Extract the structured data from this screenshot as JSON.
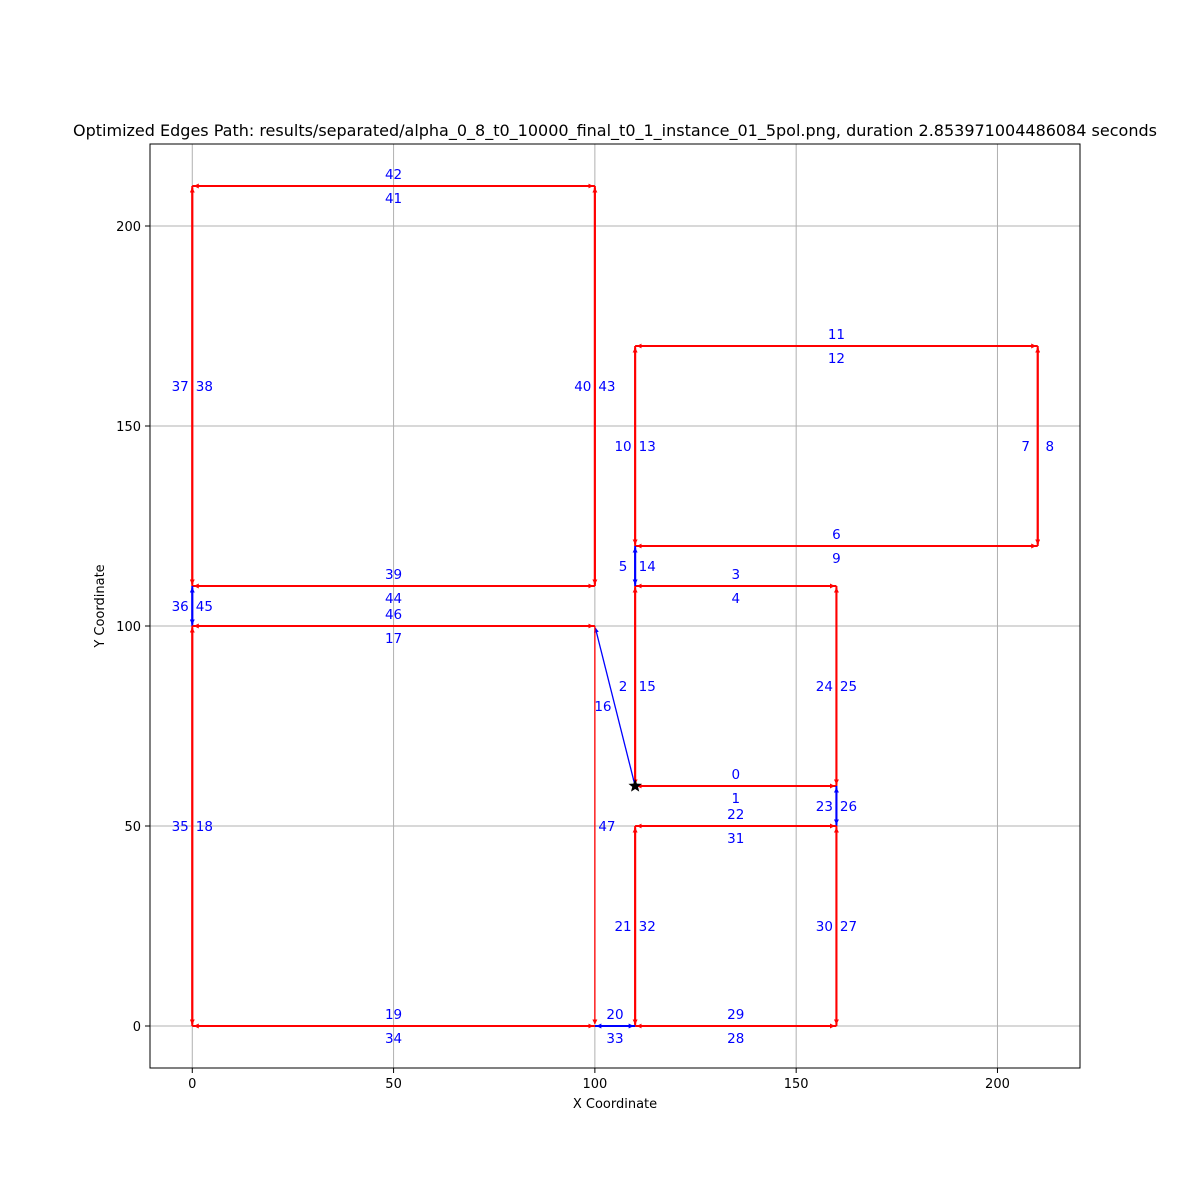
{
  "chart_data": {
    "type": "scatter",
    "title": "Optimized Edges Path: results/separated/alpha_0_8_t0_10000_final_t0_1_instance_01_5pol.png, duration 2.853971004486084 seconds",
    "xlabel": "X Coordinate",
    "ylabel": "Y Coordinate",
    "xlim": [
      -10.5,
      220.5
    ],
    "ylim": [
      -10.5,
      220.5
    ],
    "grid": true,
    "xticks": [
      0,
      50,
      100,
      150,
      200
    ],
    "yticks": [
      0,
      50,
      100,
      150,
      200
    ],
    "start_point": [
      110,
      60
    ],
    "colors": {
      "cover": "#ff0000",
      "move": "#0000ff",
      "label": "#0000ff",
      "start": "#000000"
    },
    "edges": [
      {
        "id": 0,
        "from": [
          110,
          60
        ],
        "to": [
          160,
          60
        ],
        "kind": "cover",
        "label_pos": [
          135,
          63
        ]
      },
      {
        "id": 1,
        "from": [
          160,
          60
        ],
        "to": [
          110,
          60
        ],
        "kind": "cover",
        "label_pos": [
          135,
          57
        ]
      },
      {
        "id": 2,
        "from": [
          110,
          60
        ],
        "to": [
          110,
          110
        ],
        "kind": "cover",
        "label_pos": [
          107,
          85
        ]
      },
      {
        "id": 3,
        "from": [
          110,
          110
        ],
        "to": [
          160,
          110
        ],
        "kind": "cover",
        "label_pos": [
          135,
          113
        ]
      },
      {
        "id": 4,
        "from": [
          160,
          110
        ],
        "to": [
          110,
          110
        ],
        "kind": "cover",
        "label_pos": [
          135,
          107
        ]
      },
      {
        "id": 5,
        "from": [
          110,
          110
        ],
        "to": [
          110,
          120
        ],
        "kind": "move",
        "label_pos": [
          107,
          115
        ]
      },
      {
        "id": 6,
        "from": [
          110,
          120
        ],
        "to": [
          210,
          120
        ],
        "kind": "cover",
        "label_pos": [
          160,
          123
        ]
      },
      {
        "id": 7,
        "from": [
          210,
          120
        ],
        "to": [
          210,
          170
        ],
        "kind": "cover",
        "label_pos": [
          207,
          145
        ]
      },
      {
        "id": 8,
        "from": [
          210,
          170
        ],
        "to": [
          210,
          120
        ],
        "kind": "cover",
        "label_pos": [
          213,
          145
        ]
      },
      {
        "id": 9,
        "from": [
          210,
          120
        ],
        "to": [
          110,
          120
        ],
        "kind": "cover",
        "label_pos": [
          160,
          117
        ]
      },
      {
        "id": 10,
        "from": [
          110,
          120
        ],
        "to": [
          110,
          170
        ],
        "kind": "cover",
        "label_pos": [
          107,
          145
        ]
      },
      {
        "id": 11,
        "from": [
          110,
          170
        ],
        "to": [
          210,
          170
        ],
        "kind": "cover",
        "label_pos": [
          160,
          173
        ]
      },
      {
        "id": 12,
        "from": [
          210,
          170
        ],
        "to": [
          110,
          170
        ],
        "kind": "cover",
        "label_pos": [
          160,
          167
        ]
      },
      {
        "id": 13,
        "from": [
          110,
          170
        ],
        "to": [
          110,
          120
        ],
        "kind": "cover",
        "label_pos": [
          113,
          145
        ]
      },
      {
        "id": 14,
        "from": [
          110,
          120
        ],
        "to": [
          110,
          110
        ],
        "kind": "move",
        "label_pos": [
          113,
          115
        ]
      },
      {
        "id": 15,
        "from": [
          110,
          110
        ],
        "to": [
          110,
          60
        ],
        "kind": "cover",
        "label_pos": [
          113,
          85
        ]
      },
      {
        "id": 16,
        "from": [
          110,
          60
        ],
        "to": [
          100,
          100
        ],
        "kind": "move",
        "label_pos": [
          102,
          80
        ]
      },
      {
        "id": 17,
        "from": [
          100,
          100
        ],
        "to": [
          0,
          100
        ],
        "kind": "cover",
        "label_pos": [
          50,
          97
        ]
      },
      {
        "id": 18,
        "from": [
          0,
          100
        ],
        "to": [
          0,
          0
        ],
        "kind": "cover",
        "label_pos": [
          3,
          50
        ]
      },
      {
        "id": 19,
        "from": [
          0,
          0
        ],
        "to": [
          100,
          0
        ],
        "kind": "cover",
        "label_pos": [
          50,
          3
        ]
      },
      {
        "id": 20,
        "from": [
          100,
          0
        ],
        "to": [
          110,
          0
        ],
        "kind": "move",
        "label_pos": [
          105,
          3
        ]
      },
      {
        "id": 21,
        "from": [
          110,
          0
        ],
        "to": [
          110,
          50
        ],
        "kind": "cover",
        "label_pos": [
          107,
          25
        ]
      },
      {
        "id": 22,
        "from": [
          110,
          50
        ],
        "to": [
          160,
          50
        ],
        "kind": "cover",
        "label_pos": [
          135,
          53
        ]
      },
      {
        "id": 23,
        "from": [
          160,
          50
        ],
        "to": [
          160,
          60
        ],
        "kind": "move",
        "label_pos": [
          157,
          55
        ]
      },
      {
        "id": 24,
        "from": [
          160,
          60
        ],
        "to": [
          160,
          110
        ],
        "kind": "cover",
        "label_pos": [
          157,
          85
        ]
      },
      {
        "id": 25,
        "from": [
          160,
          110
        ],
        "to": [
          160,
          60
        ],
        "kind": "cover",
        "label_pos": [
          163,
          85
        ]
      },
      {
        "id": 26,
        "from": [
          160,
          60
        ],
        "to": [
          160,
          50
        ],
        "kind": "move",
        "label_pos": [
          163,
          55
        ]
      },
      {
        "id": 27,
        "from": [
          160,
          50
        ],
        "to": [
          160,
          0
        ],
        "kind": "cover",
        "label_pos": [
          163,
          25
        ]
      },
      {
        "id": 28,
        "from": [
          160,
          0
        ],
        "to": [
          110,
          0
        ],
        "kind": "cover",
        "label_pos": [
          135,
          -3
        ]
      },
      {
        "id": 29,
        "from": [
          110,
          0
        ],
        "to": [
          160,
          0
        ],
        "kind": "cover",
        "label_pos": [
          135,
          3
        ]
      },
      {
        "id": 30,
        "from": [
          160,
          0
        ],
        "to": [
          160,
          50
        ],
        "kind": "cover",
        "label_pos": [
          157,
          25
        ]
      },
      {
        "id": 31,
        "from": [
          160,
          50
        ],
        "to": [
          110,
          50
        ],
        "kind": "cover",
        "label_pos": [
          135,
          47
        ]
      },
      {
        "id": 32,
        "from": [
          110,
          50
        ],
        "to": [
          110,
          0
        ],
        "kind": "cover",
        "label_pos": [
          113,
          25
        ]
      },
      {
        "id": 33,
        "from": [
          110,
          0
        ],
        "to": [
          100,
          0
        ],
        "kind": "move",
        "label_pos": [
          105,
          -3
        ]
      },
      {
        "id": 34,
        "from": [
          100,
          0
        ],
        "to": [
          0,
          0
        ],
        "kind": "cover",
        "label_pos": [
          50,
          -3
        ]
      },
      {
        "id": 35,
        "from": [
          0,
          0
        ],
        "to": [
          0,
          100
        ],
        "kind": "cover",
        "label_pos": [
          -3,
          50
        ]
      },
      {
        "id": 36,
        "from": [
          0,
          100
        ],
        "to": [
          0,
          110
        ],
        "kind": "move",
        "label_pos": [
          -3,
          105
        ]
      },
      {
        "id": 37,
        "from": [
          0,
          110
        ],
        "to": [
          0,
          210
        ],
        "kind": "cover",
        "label_pos": [
          -3,
          160
        ]
      },
      {
        "id": 38,
        "from": [
          0,
          210
        ],
        "to": [
          0,
          110
        ],
        "kind": "cover",
        "label_pos": [
          3,
          160
        ]
      },
      {
        "id": 39,
        "from": [
          0,
          110
        ],
        "to": [
          100,
          110
        ],
        "kind": "cover",
        "label_pos": [
          50,
          113
        ]
      },
      {
        "id": 40,
        "from": [
          100,
          110
        ],
        "to": [
          100,
          210
        ],
        "kind": "cover",
        "label_pos": [
          97,
          160
        ]
      },
      {
        "id": 41,
        "from": [
          100,
          210
        ],
        "to": [
          0,
          210
        ],
        "kind": "cover",
        "label_pos": [
          50,
          207
        ]
      },
      {
        "id": 42,
        "from": [
          0,
          210
        ],
        "to": [
          100,
          210
        ],
        "kind": "cover",
        "label_pos": [
          50,
          213
        ]
      },
      {
        "id": 43,
        "from": [
          100,
          210
        ],
        "to": [
          100,
          110
        ],
        "kind": "cover",
        "label_pos": [
          103,
          160
        ]
      },
      {
        "id": 44,
        "from": [
          100,
          110
        ],
        "to": [
          0,
          110
        ],
        "kind": "cover",
        "label_pos": [
          50,
          107
        ]
      },
      {
        "id": 45,
        "from": [
          0,
          110
        ],
        "to": [
          0,
          100
        ],
        "kind": "move",
        "label_pos": [
          3,
          105
        ]
      },
      {
        "id": 46,
        "from": [
          0,
          100
        ],
        "to": [
          100,
          100
        ],
        "kind": "cover",
        "label_pos": [
          50,
          103
        ]
      },
      {
        "id": 47,
        "from": [
          100,
          100
        ],
        "to": [
          100,
          0
        ],
        "kind": "cover",
        "label_pos": [
          103,
          50
        ]
      }
    ]
  }
}
